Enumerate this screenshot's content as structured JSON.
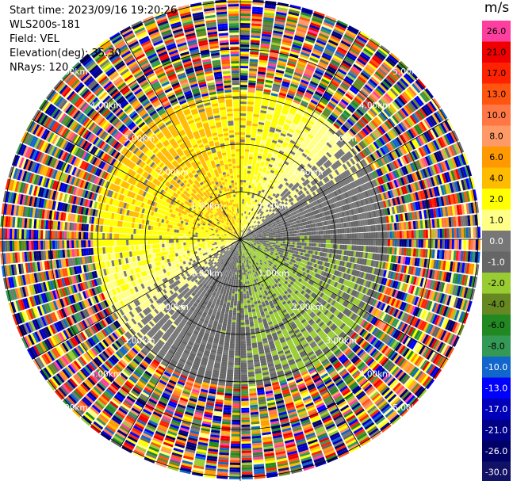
{
  "header": {
    "start_time": "Start time: 2023/09/16 19:20:26",
    "instrument": "WLS200s-181",
    "field": "Field: VEL",
    "elevation": "Elevation(deg): 35.30",
    "nrays": "NRays: 120"
  },
  "colorbar": {
    "unit": "m/s",
    "ticks": [
      "26.0",
      "21.0",
      "17.0",
      "13.0",
      "10.0",
      "8.0",
      "6.0",
      "4.0",
      "2.0",
      "1.0",
      "0.0",
      "-1.0",
      "-2.0",
      "-4.0",
      "-6.0",
      "-8.0",
      "-10.0",
      "-13.0",
      "-17.0",
      "-21.0",
      "-26.0",
      "-30.0"
    ],
    "colors": [
      "#ff3f9f",
      "#ee0000",
      "#ff2200",
      "#ff5511",
      "#ff7744",
      "#ff9966",
      "#ff9900",
      "#ffbb00",
      "#ffff00",
      "#ffff88",
      "#777777",
      "#666666",
      "#99cc33",
      "#668822",
      "#228822",
      "#339955",
      "#1166cc",
      "#0000ff",
      "#0000bb",
      "#000088",
      "#000066",
      "#111166"
    ]
  },
  "chart_data": {
    "type": "ppi",
    "field": "VEL",
    "units": "m/s",
    "nrays": 120,
    "range_rings_km": [
      1.0,
      2.0,
      3.0,
      4.0,
      5.0
    ],
    "range_labels": [
      "1.00km",
      "2.00km",
      "3.00km",
      "4.00km",
      "5.00km"
    ],
    "vmin": -30.0,
    "vmax": 26.0
  }
}
